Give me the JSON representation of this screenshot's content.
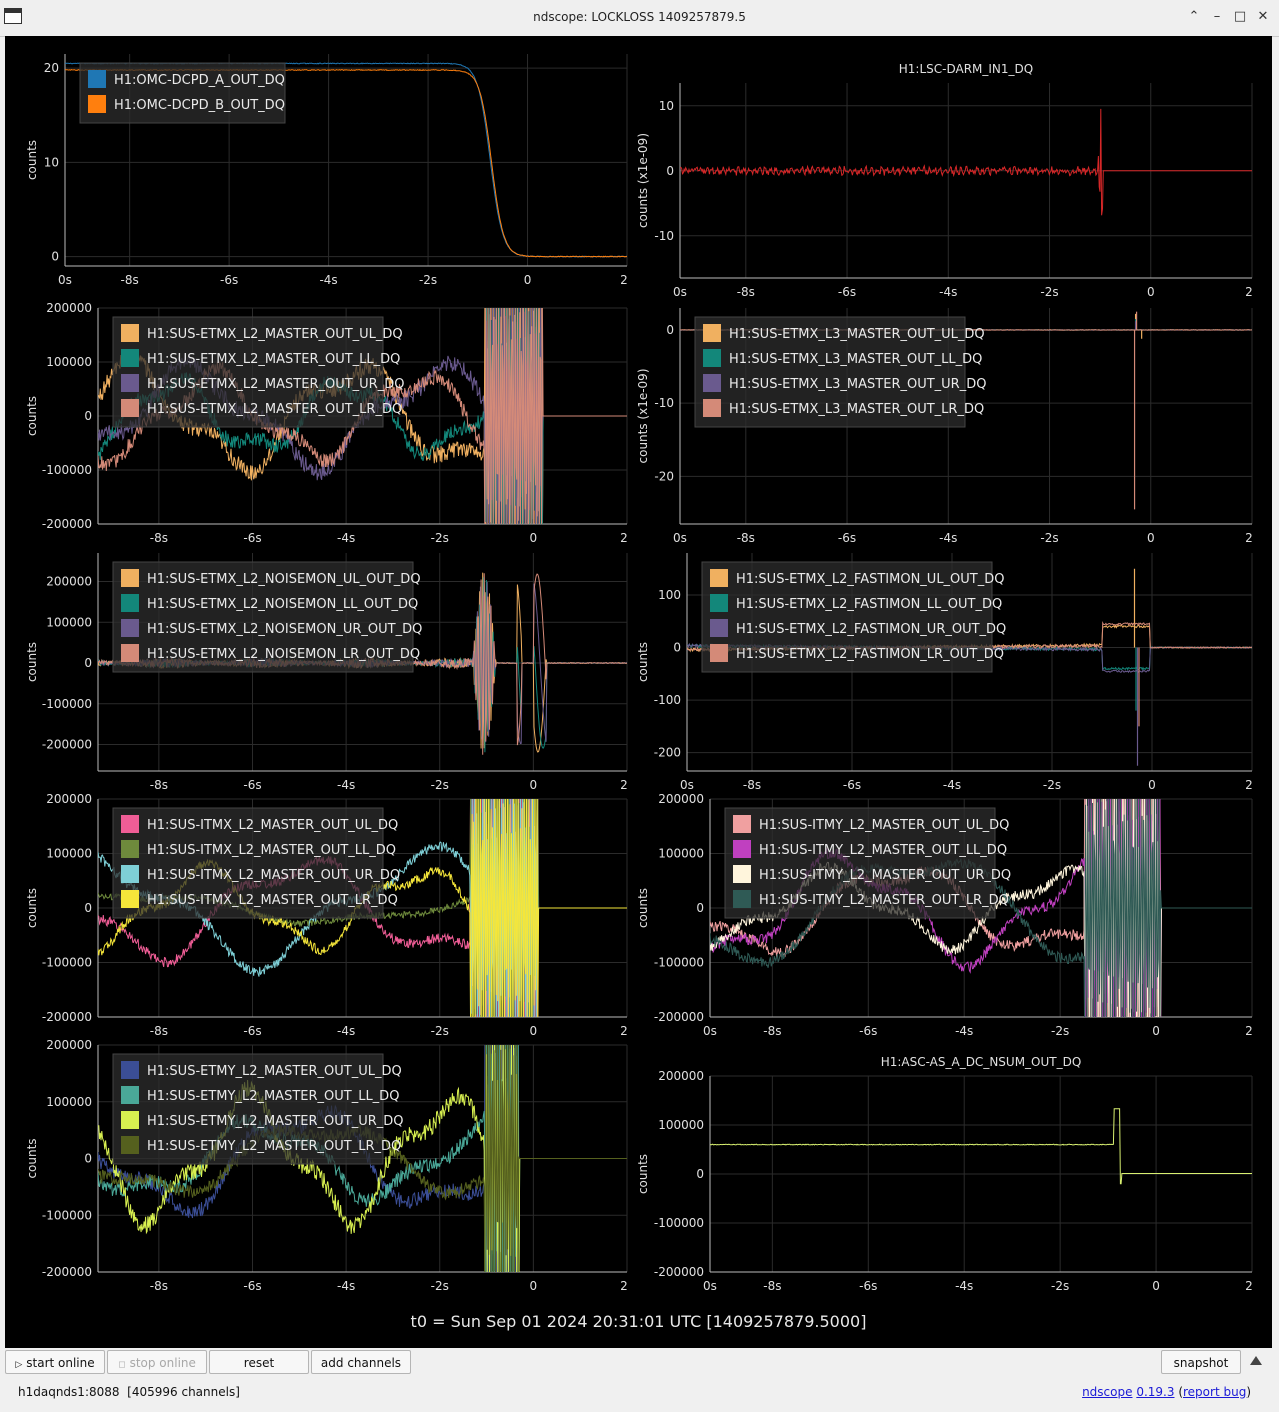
{
  "window": {
    "title": "ndscope: LOCKLOSS 1409257879.5",
    "controls": [
      "⌃",
      "–",
      "□",
      "✕"
    ]
  },
  "t0_label": "t0 = Sun Sep 01 2024 20:31:01 UTC [1409257879.5000]",
  "toolbar": {
    "start_online": "start online",
    "stop_online": "stop online",
    "reset": "reset",
    "add_channels": "add channels",
    "snapshot": "snapshot"
  },
  "status": {
    "server": "h1daqnds1:8088",
    "channels": "[405996 channels]",
    "app_name": "ndscope",
    "version": "0.19.3",
    "report_bug": "report bug"
  },
  "chart_data": [
    {
      "type": "line",
      "title": "",
      "ylabel": "counts",
      "xlim": [
        -9.3,
        2
      ],
      "ylim": [
        -1,
        21.5
      ],
      "yticks": [
        0,
        10,
        20
      ],
      "x_ticks": [
        "0s",
        "-8s",
        "-6s",
        "-4s",
        "-2s",
        "0",
        "2"
      ],
      "series": [
        {
          "name": "H1:OMC-DCPD_A_OUT_DQ",
          "color": "#1f77b4",
          "kind": "drop",
          "base": 20.5,
          "t0": -0.75,
          "k": 4
        },
        {
          "name": "H1:OMC-DCPD_B_OUT_DQ",
          "color": "#ff7f0e",
          "kind": "drop",
          "base": 19.8,
          "t0": -0.72,
          "k": 4.2
        }
      ]
    },
    {
      "type": "line",
      "title": "H1:LSC-DARM_IN1_DQ",
      "ylabel": "counts (x1e-09)",
      "xlim": [
        -9.3,
        2
      ],
      "ylim": [
        -16.5,
        13.5
      ],
      "yticks": [
        -10,
        0,
        10
      ],
      "x_ticks": [
        "0s",
        "-8s",
        "-6s",
        "-4s",
        "-2s",
        "0",
        "2"
      ],
      "series": [
        {
          "name": "",
          "color": "#d62728",
          "kind": "darm",
          "amp": 0.55,
          "burst": 15,
          "tb": -1.05,
          "end": -0.95
        }
      ]
    },
    {
      "type": "line",
      "title": "",
      "ylabel": "counts",
      "xlim": [
        -9.3,
        2
      ],
      "ylim": [
        -200000,
        200000
      ],
      "yticks": [
        -200000,
        -100000,
        0,
        100000,
        200000
      ],
      "x_ticks": [
        "",
        "-8s",
        "-6s",
        "-4s",
        "-2s",
        "0",
        "2"
      ],
      "series": [
        {
          "name": "H1:SUS-ETMX_L2_MASTER_OUT_UL_DQ",
          "color": "#f0b060",
          "kind": "osc",
          "amp": 85000,
          "f": 0.21,
          "ph": 0.4,
          "noise": 16000,
          "burst": 250000,
          "tb": -1.05,
          "end": 0.2
        },
        {
          "name": "H1:SUS-ETMX_L2_MASTER_OUT_LL_DQ",
          "color": "#13877a",
          "kind": "osc",
          "amp": 60000,
          "f": 0.27,
          "ph": 2.1,
          "noise": 14000,
          "burst": 250000,
          "tb": -1.05,
          "end": 0.2
        },
        {
          "name": "H1:SUS-ETMX_L2_MASTER_OUT_UR_DQ",
          "color": "#6a5a8e",
          "kind": "osc",
          "amp": 80000,
          "f": 0.19,
          "ph": 4.0,
          "noise": 16000,
          "burst": 250000,
          "tb": -1.05,
          "end": 0.2
        },
        {
          "name": "H1:SUS-ETMX_L2_MASTER_OUT_LR_DQ",
          "color": "#d48a78",
          "kind": "osc",
          "amp": 70000,
          "f": 0.23,
          "ph": 5.2,
          "noise": 14000,
          "burst": 250000,
          "tb": -1.05,
          "end": 0.2
        }
      ]
    },
    {
      "type": "line",
      "title": "",
      "ylabel": "counts (x1e-09)",
      "xlim": [
        -9.3,
        2
      ],
      "ylim": [
        -26.5,
        3
      ],
      "yticks": [
        -20,
        -10,
        0
      ],
      "x_ticks": [
        "0s",
        "-8s",
        "-6s",
        "-4s",
        "-2s",
        "0",
        "2"
      ],
      "series": [
        {
          "name": "H1:SUS-ETMX_L3_MASTER_OUT_UL_DQ",
          "color": "#f0b060",
          "kind": "spike",
          "amp": 0.05,
          "spikes": [
            [
              -0.3,
              2.2
            ],
            [
              -0.18,
              -1.2
            ]
          ]
        },
        {
          "name": "H1:SUS-ETMX_L3_MASTER_OUT_LL_DQ",
          "color": "#13877a",
          "kind": "spike",
          "amp": 0.05,
          "spikes": [
            [
              -0.3,
              1.5
            ]
          ]
        },
        {
          "name": "H1:SUS-ETMX_L3_MASTER_OUT_UR_DQ",
          "color": "#6a5a8e",
          "kind": "spike",
          "amp": 0.05,
          "spikes": [
            [
              -0.3,
              1.2
            ]
          ]
        },
        {
          "name": "H1:SUS-ETMX_L3_MASTER_OUT_LR_DQ",
          "color": "#d48a78",
          "kind": "spike",
          "amp": 0.05,
          "spikes": [
            [
              -0.32,
              -24.5
            ],
            [
              -0.28,
              2.5
            ]
          ]
        }
      ]
    },
    {
      "type": "line",
      "title": "",
      "ylabel": "counts",
      "xlim": [
        -9.3,
        2
      ],
      "ylim": [
        -265000,
        270000
      ],
      "yticks": [
        -200000,
        -100000,
        0,
        100000,
        200000
      ],
      "x_ticks": [
        "",
        "-8s",
        "-6s",
        "-4s",
        "-2s",
        "0",
        "2"
      ],
      "series": [
        {
          "name": "H1:SUS-ETMX_L2_NOISEMON_UL_OUT_DQ",
          "color": "#f0b060",
          "kind": "noisemon",
          "amp": 9000,
          "burst": 230000
        },
        {
          "name": "H1:SUS-ETMX_L2_NOISEMON_LL_OUT_DQ",
          "color": "#13877a",
          "kind": "noisemon",
          "amp": 8000,
          "burst": 220000
        },
        {
          "name": "H1:SUS-ETMX_L2_NOISEMON_UR_OUT_DQ",
          "color": "#6a5a8e",
          "kind": "noisemon",
          "amp": 8000,
          "burst": 220000
        },
        {
          "name": "H1:SUS-ETMX_L2_NOISEMON_LR_OUT_DQ",
          "color": "#d48a78",
          "kind": "noisemon",
          "amp": 9000,
          "burst": 230000
        }
      ]
    },
    {
      "type": "line",
      "title": "",
      "ylabel": "counts",
      "xlim": [
        -9.3,
        2
      ],
      "ylim": [
        -235000,
        180000
      ],
      "yscale_display": [
        -235,
        180
      ],
      "yticks": [
        -200,
        -100,
        0,
        100
      ],
      "x_ticks": [
        "0s",
        "-8s",
        "-6s",
        "-4s",
        "-2s",
        "0",
        "2"
      ],
      "series": [
        {
          "name": "H1:SUS-ETMX_L2_FASTIMON_UL_OUT_DQ",
          "color": "#f0b060",
          "kind": "fasti",
          "drift": 22,
          "step": 40,
          "spk": 150
        },
        {
          "name": "H1:SUS-ETMX_L2_FASTIMON_LL_OUT_DQ",
          "color": "#13877a",
          "kind": "fasti",
          "drift": -15,
          "step": -40,
          "spk": -120
        },
        {
          "name": "H1:SUS-ETMX_L2_FASTIMON_UR_OUT_DQ",
          "color": "#6a5a8e",
          "kind": "fasti",
          "drift": -20,
          "step": -45,
          "spk": -225
        },
        {
          "name": "H1:SUS-ETMX_L2_FASTIMON_LR_OUT_DQ",
          "color": "#d48a78",
          "kind": "fasti",
          "drift": 15,
          "step": 45,
          "spk": -150
        }
      ]
    },
    {
      "type": "line",
      "title": "",
      "ylabel": "counts",
      "xlim": [
        -9.3,
        2
      ],
      "ylim": [
        -200000,
        200000
      ],
      "yticks": [
        -200000,
        -100000,
        0,
        100000,
        200000
      ],
      "x_ticks": [
        "",
        "-8s",
        "-6s",
        "-4s",
        "-2s",
        "0",
        "2"
      ],
      "series": [
        {
          "name": "H1:SUS-ITMX_L2_MASTER_OUT_UL_DQ",
          "color": "#ef5d96",
          "kind": "osc",
          "amp": 80000,
          "f": 0.16,
          "ph": 0.3,
          "noise": 9000,
          "burst": 260000,
          "tb": -1.35,
          "end": 0.1
        },
        {
          "name": "H1:SUS-ITMX_L2_MASTER_OUT_LL_DQ",
          "color": "#6e8a3c",
          "kind": "osc",
          "amp": 25000,
          "f": 0.12,
          "ph": 1.7,
          "noise": 6000,
          "burst": 260000,
          "tb": -1.35,
          "end": 0.1
        },
        {
          "name": "H1:SUS-ITMX_L2_MASTER_OUT_UR_DQ",
          "color": "#7ecfd6",
          "kind": "osc",
          "amp": 90000,
          "f": 0.14,
          "ph": 3.6,
          "noise": 9000,
          "burst": 260000,
          "tb": -1.35,
          "end": 0.1
        },
        {
          "name": "H1:SUS-ITMX_L2_MASTER_OUT_LR_DQ",
          "color": "#f5e63a",
          "kind": "osc",
          "amp": 65000,
          "f": 0.22,
          "ph": 5.0,
          "noise": 9000,
          "burst": 260000,
          "tb": -1.35,
          "end": 0.1
        }
      ]
    },
    {
      "type": "line",
      "title": "",
      "ylabel": "counts",
      "xlim": [
        -9.3,
        2
      ],
      "ylim": [
        -200000,
        200000
      ],
      "yticks": [
        -200000,
        -100000,
        0,
        100000,
        200000
      ],
      "x_ticks": [
        "0s",
        "-8s",
        "-6s",
        "-4s",
        "-2s",
        "0",
        "2"
      ],
      "series": [
        {
          "name": "H1:SUS-ITMY_L2_MASTER_OUT_UL_DQ",
          "color": "#f0a0a0",
          "kind": "osc",
          "amp": 70000,
          "f": 0.17,
          "ph": 1.0,
          "noise": 10000,
          "burst": 260000,
          "tb": -1.5,
          "end": 0.1
        },
        {
          "name": "H1:SUS-ITMY_L2_MASTER_OUT_LL_DQ",
          "color": "#c040c0",
          "kind": "osc",
          "amp": 85000,
          "f": 0.19,
          "ph": 3.0,
          "noise": 10000,
          "burst": 260000,
          "tb": -1.5,
          "end": 0.1
        },
        {
          "name": "H1:SUS-ITMY_L2_MASTER_OUT_UR_DQ",
          "color": "#fff5dc",
          "kind": "osc",
          "amp": 60000,
          "f": 0.21,
          "ph": 4.2,
          "noise": 10000,
          "burst": 260000,
          "tb": -1.5,
          "end": 0.1
        },
        {
          "name": "H1:SUS-ITMY_L2_MASTER_OUT_LR_DQ",
          "color": "#2f5a55",
          "kind": "osc",
          "amp": 90000,
          "f": 0.13,
          "ph": 5.6,
          "noise": 10000,
          "burst": 260000,
          "tb": -1.5,
          "end": 0.1
        }
      ]
    },
    {
      "type": "line",
      "title": "",
      "ylabel": "counts",
      "xlim": [
        -9.3,
        2
      ],
      "ylim": [
        -200000,
        200000
      ],
      "yticks": [
        -200000,
        -100000,
        0,
        100000,
        200000
      ],
      "x_ticks": [
        "",
        "-8s",
        "-6s",
        "-4s",
        "-2s",
        "0",
        "2"
      ],
      "series": [
        {
          "name": "H1:SUS-ETMY_L2_MASTER_OUT_UL_DQ",
          "color": "#3b4e96",
          "kind": "osc",
          "amp": 80000,
          "f": 0.18,
          "ph": 0.8,
          "noise": 13000,
          "burst": 260000,
          "tb": -1.05,
          "end": -0.3
        },
        {
          "name": "H1:SUS-ETMY_L2_MASTER_OUT_LL_DQ",
          "color": "#4aa898",
          "kind": "osc",
          "amp": 60000,
          "f": 0.2,
          "ph": 2.6,
          "noise": 13000,
          "burst": 260000,
          "tb": -1.05,
          "end": -0.3
        },
        {
          "name": "H1:SUS-ETMY_L2_MASTER_OUT_UR_DQ",
          "color": "#d8f050",
          "kind": "osc",
          "amp": 95000,
          "f": 0.24,
          "ph": 4.4,
          "noise": 16000,
          "burst": 260000,
          "tb": -1.05,
          "end": -0.3
        },
        {
          "name": "H1:SUS-ETMY_L2_MASTER_OUT_LR_DQ",
          "color": "#55601e",
          "kind": "osc",
          "amp": 55000,
          "f": 0.15,
          "ph": 5.9,
          "noise": 12000,
          "burst": 260000,
          "tb": -1.05,
          "end": -0.3
        }
      ]
    },
    {
      "type": "line",
      "title": "H1:ASC-AS_A_DC_NSUM_OUT_DQ",
      "ylabel": "counts",
      "xlim": [
        -9.3,
        2
      ],
      "ylim": [
        -200000,
        200000
      ],
      "yticks": [
        -200000,
        -100000,
        0,
        100000,
        200000
      ],
      "x_ticks": [
        "0s",
        "-8s",
        "-6s",
        "-4s",
        "-2s",
        "0",
        "2"
      ],
      "series": [
        {
          "name": "",
          "color": "#d8f070",
          "kind": "nsum",
          "base": 60000,
          "spike": 133000,
          "low": -20000,
          "after": 1000
        }
      ]
    }
  ]
}
